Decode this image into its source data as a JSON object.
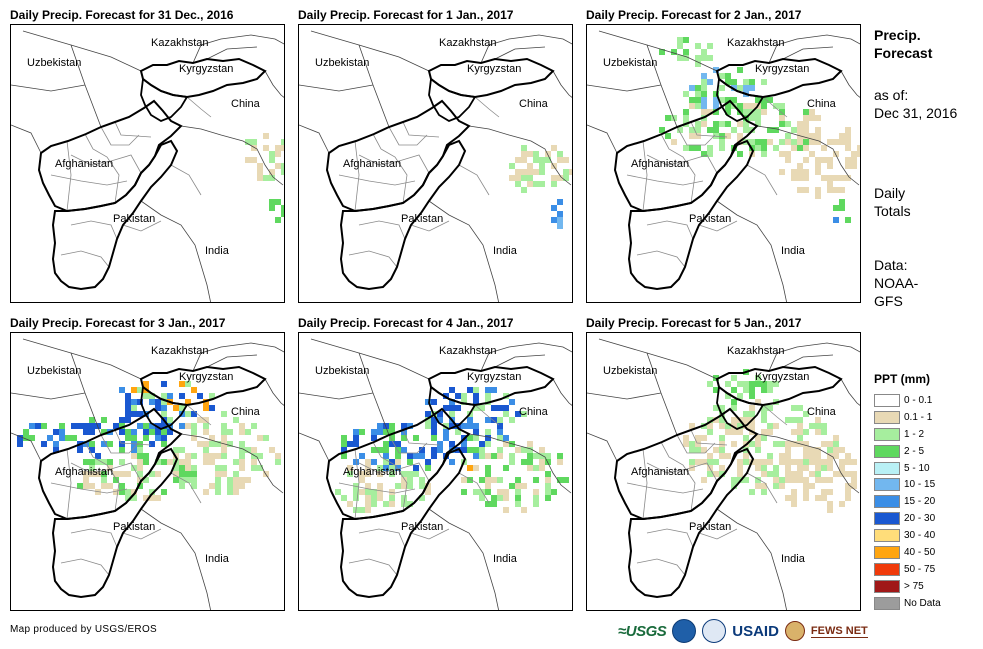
{
  "panels": [
    {
      "title": "Daily Precip. Forecast for 31 Dec., 2016",
      "intensity": 0
    },
    {
      "title": "Daily Precip. Forecast for 1 Jan., 2017",
      "intensity": 0
    },
    {
      "title": "Daily Precip. Forecast for 2 Jan., 2017",
      "intensity": 2
    },
    {
      "title": "Daily Precip. Forecast for 3 Jan., 2017",
      "intensity": 4
    },
    {
      "title": "Daily Precip. Forecast for 4 Jan., 2017",
      "intensity": 4
    },
    {
      "title": "Daily Precip. Forecast for 5 Jan., 2017",
      "intensity": 1
    }
  ],
  "map_labels": {
    "kazakhstan": "Kazakhstan",
    "uzbekistan": "Uzbekistan",
    "kyrgyzstan": "Kyrgyzstan",
    "china": "China",
    "afghanistan": "Afghanistan",
    "pakistan": "Pakistan",
    "india": "India"
  },
  "sidebar": {
    "title_line1": "Precip.",
    "title_line2": "Forecast",
    "asof_line1": "as of:",
    "asof_line2": "Dec 31, 2016",
    "totals_line1": "Daily",
    "totals_line2": "Totals",
    "data_line1": "Data:",
    "data_line2": "NOAA-",
    "data_line3": "GFS"
  },
  "legend": {
    "title": "PPT (mm)",
    "items": [
      {
        "label": "0 - 0.1",
        "color": "#ffffff"
      },
      {
        "label": "0.1 - 1",
        "color": "#e8d9b5"
      },
      {
        "label": "1 - 2",
        "color": "#a6ee9e"
      },
      {
        "label": "2 - 5",
        "color": "#5fd85f"
      },
      {
        "label": "5 - 10",
        "color": "#b9f0f5"
      },
      {
        "label": "10 - 15",
        "color": "#72b7ef"
      },
      {
        "label": "15 - 20",
        "color": "#3b8ee6"
      },
      {
        "label": "20 - 30",
        "color": "#1a58d1"
      },
      {
        "label": "30 - 40",
        "color": "#ffdd7a"
      },
      {
        "label": "40 - 50",
        "color": "#ffa510"
      },
      {
        "label": "50 - 75",
        "color": "#f03a0a"
      },
      {
        "label": "> 75",
        "color": "#a01818"
      },
      {
        "label": "No Data",
        "color": "#9c9c9c"
      }
    ]
  },
  "footer": {
    "credit": "Map produced by USGS/EROS",
    "logo_usgs": "≈USGS",
    "logo_usaid": "USAID",
    "logo_fews": "FEWS NET"
  }
}
